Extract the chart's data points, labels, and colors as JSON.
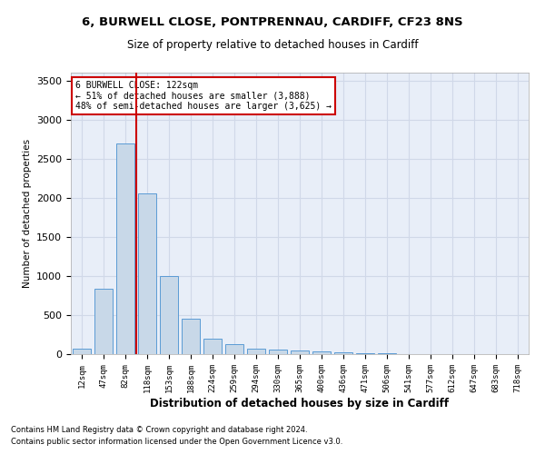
{
  "title1": "6, BURWELL CLOSE, PONTPRENNAU, CARDIFF, CF23 8NS",
  "title2": "Size of property relative to detached houses in Cardiff",
  "xlabel": "Distribution of detached houses by size in Cardiff",
  "ylabel": "Number of detached properties",
  "footnote1": "Contains HM Land Registry data © Crown copyright and database right 2024.",
  "footnote2": "Contains public sector information licensed under the Open Government Licence v3.0.",
  "categories": [
    "12sqm",
    "47sqm",
    "82sqm",
    "118sqm",
    "153sqm",
    "188sqm",
    "224sqm",
    "259sqm",
    "294sqm",
    "330sqm",
    "365sqm",
    "400sqm",
    "436sqm",
    "471sqm",
    "506sqm",
    "541sqm",
    "577sqm",
    "612sqm",
    "647sqm",
    "683sqm",
    "718sqm"
  ],
  "values": [
    70,
    840,
    2700,
    2050,
    1000,
    450,
    200,
    130,
    70,
    55,
    50,
    30,
    20,
    12,
    7,
    5,
    4,
    3,
    2,
    2,
    1
  ],
  "bar_color": "#c8d8e8",
  "bar_edge_color": "#5b9bd5",
  "grid_color": "#d0d8e8",
  "bg_color": "#e8eef8",
  "annotation_line1": "6 BURWELL CLOSE: 122sqm",
  "annotation_line2": "← 51% of detached houses are smaller (3,888)",
  "annotation_line3": "48% of semi-detached houses are larger (3,625) →",
  "annotation_box_color": "#ffffff",
  "annotation_box_edge": "#cc0000",
  "red_line_x": 2.5,
  "ylim": [
    0,
    3600
  ],
  "yticks": [
    0,
    500,
    1000,
    1500,
    2000,
    2500,
    3000,
    3500
  ]
}
